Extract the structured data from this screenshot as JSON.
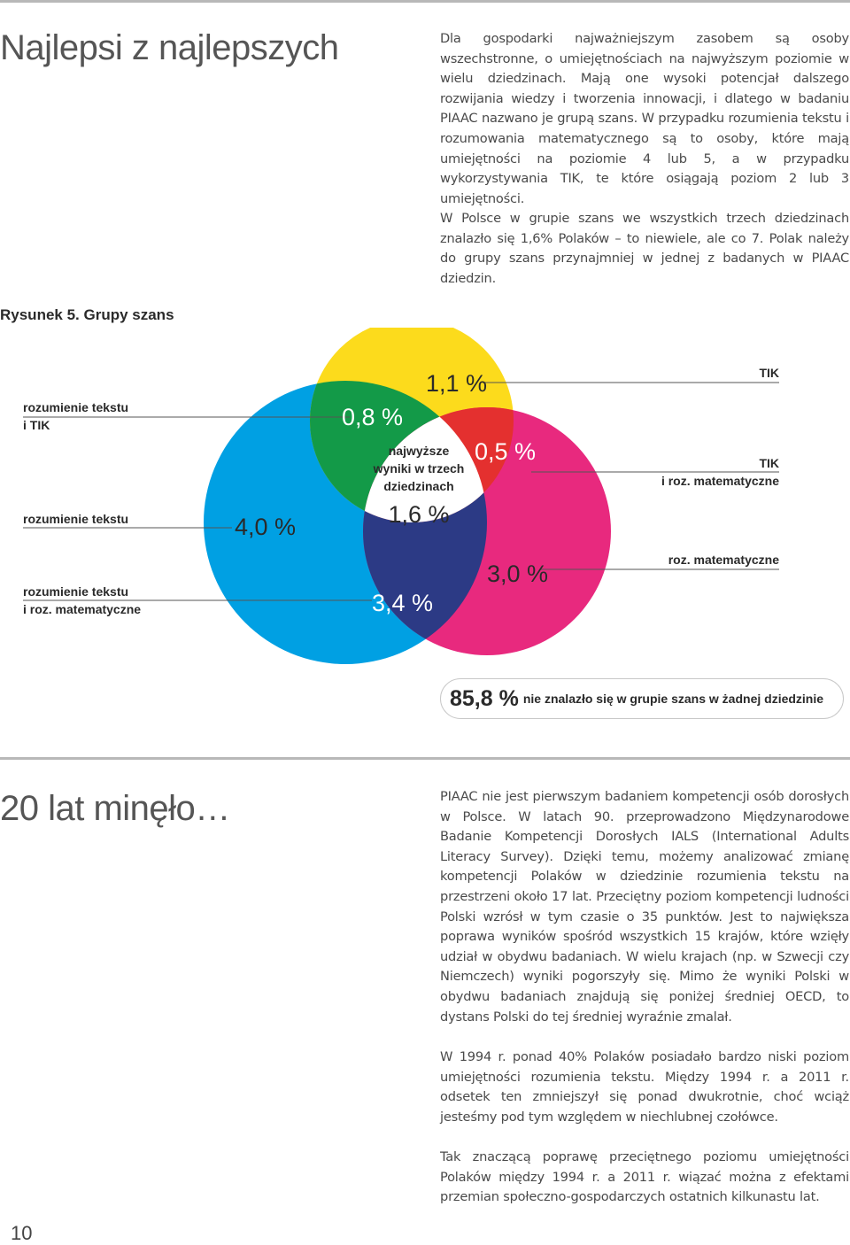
{
  "section1": {
    "title": "Najlepsi z najlepszych",
    "paragraphs": [
      "Dla gospodarki najważniejszym zasobem są osoby wszechstronne, o umiejętnościach na najwyższym poziomie w wielu dziedzinach. Mają one wysoki potencjał dalszego rozwijania wiedzy i tworzenia innowacji, i dlatego w badaniu PIAAC nazwano je grupą szans. W przypadku rozumienia tekstu i rozumowania matematycznego są to osoby, które mają umiejętności na poziomie 4 lub 5, a w przypadku wykorzystywania TIK, te które osiągają poziom 2 lub 3 umiejętności.",
      "W Polsce w grupie szans we wszystkich trzech dziedzinach znalazło się 1,6% Polaków – to niewiele, ale co 7. Polak należy do grupy szans przynajmniej w jednej z badanych w PIAAC dziedzin."
    ]
  },
  "figure": {
    "caption": "Rysunek 5. Grupy szans",
    "labels": {
      "reading_tik_1": "rozumienie tekstu",
      "reading_tik_2": "i TIK",
      "reading": "rozumienie tekstu",
      "reading_math_1": "rozumienie tekstu",
      "reading_math_2": "i roz. matematyczne",
      "tik": "TIK",
      "tik_math_1": "TIK",
      "tik_math_2": "i roz. matematyczne",
      "math": "roz. matematyczne"
    },
    "values": {
      "reading_only": "4,0 %",
      "reading_tik": "0,8 %",
      "tik_only": "1,1 %",
      "tik_math": "0,5 %",
      "all_three": "1,6 %",
      "math_only": "3,0 %",
      "reading_math": "3,4 %"
    },
    "center_text": [
      "najwyższe",
      "wyniki w trzech",
      "dziedzinach"
    ],
    "colors": {
      "reading": "#00a0e3",
      "tik": "#fcdb1c",
      "math": "#e8297e",
      "reading_tik": "#139a48",
      "tik_math": "#e4302f",
      "reading_math": "#2c3a85",
      "center": "#ffffff"
    },
    "summary": {
      "value": "85,8 %",
      "text": "nie znalazło się w grupie szans w żadnej dziedzinie"
    }
  },
  "section2": {
    "title": "20 lat minęło…",
    "paragraphs": [
      "PIAAC nie jest pierwszym badaniem kompetencji osób dorosłych w Polsce. W latach 90. przeprowadzono Międzynarodowe Badanie Kompetencji Dorosłych IALS (International Adults Literacy Survey). Dzięki temu, możemy analizować zmianę kompetencji Polaków w dziedzinie rozumienia tekstu na przestrzeni około 17 lat. Przeciętny poziom kompetencji ludności Polski wzrósł w tym czasie o 35 punktów. Jest to największa poprawa wyników spośród wszystkich 15 krajów, które wzięły udział w obydwu badaniach. W wielu krajach (np. w Szwecji czy Niemczech) wyniki pogorszyły się. Mimo że wyniki Polski w obydwu badaniach znajdują się poniżej średniej OECD, to dystans Polski do tej średniej wyraźnie zmalał.",
      "W 1994 r. ponad 40% Polaków posiadało bardzo niski poziom umiejętności rozumienia tekstu. Między 1994 r. a 2011 r. odsetek ten zmniejszył się ponad dwukrotnie, choć wciąż jesteśmy pod tym względem w niechlubnej czołówce.",
      "Tak znaczącą poprawę przeciętnego poziomu umiejętności Polaków między 1994 r. a 2011 r. wiązać można z efektami przemian społeczno-gospodarczych ostatnich kilkunastu lat."
    ]
  },
  "page_number": "10"
}
